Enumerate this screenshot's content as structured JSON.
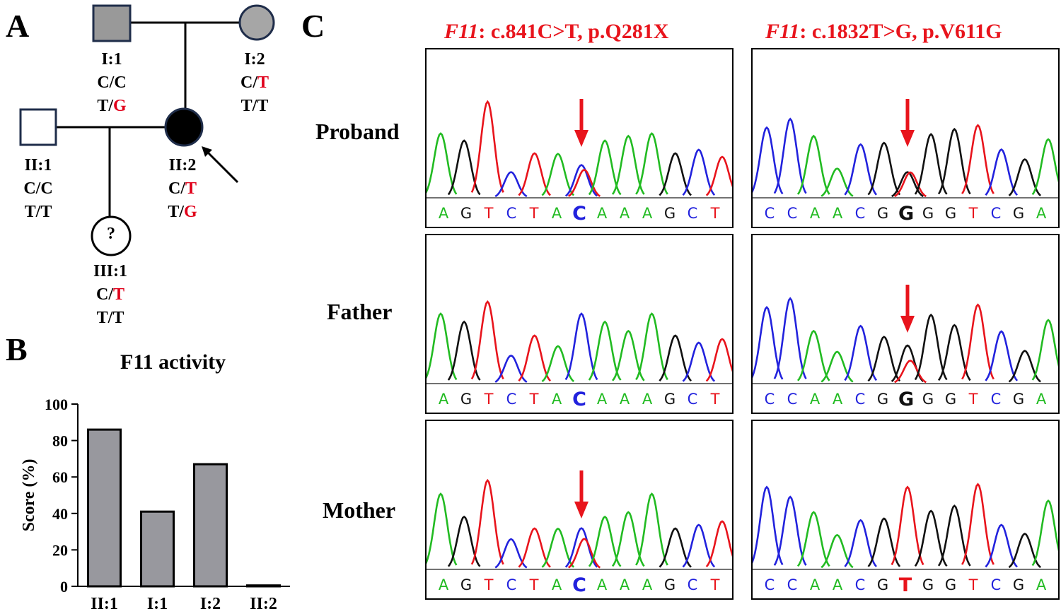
{
  "panels": {
    "a": "A",
    "b": "B",
    "c": "C"
  },
  "pedigree": {
    "members": [
      {
        "id": "I:1",
        "gt1": "C/",
        "gt1b": "C",
        "gt2": "T/",
        "gt2b": "G",
        "role": "father"
      },
      {
        "id": "I:2",
        "gt1": "C/",
        "gt1b": "T",
        "gt2": "T/",
        "gt2b": "T",
        "role": "mother"
      },
      {
        "id": "II:1",
        "gt1": "C/",
        "gt1b": "C",
        "gt2": "T/",
        "gt2b": "T",
        "role": "husband"
      },
      {
        "id": "II:2",
        "gt1": "C/",
        "gt1b": "T",
        "gt2": "T/",
        "gt2b": "G",
        "role": "proband"
      },
      {
        "id": "III:1",
        "gt1": "C/",
        "gt1b": "T",
        "gt2": "T/",
        "gt2b": "T",
        "role": "child"
      }
    ],
    "unknown_symbol": "?"
  },
  "sequencing": {
    "col1_gene": "F11",
    "col1_title": ": c.841C>T, p.Q281X",
    "col2_gene": "F11",
    "col2_title": ": c.1832T>G, p.V611G",
    "row_labels": [
      "Proband",
      "Father",
      "Mother"
    ],
    "bases_col1": [
      "A",
      "G",
      "T",
      "C",
      "T",
      "A",
      "C",
      "A",
      "A",
      "A",
      "G",
      "C",
      "T"
    ],
    "bases_col2_proband": [
      "C",
      "C",
      "A",
      "A",
      "C",
      "G",
      "G",
      "G",
      "G",
      "T",
      "C",
      "G",
      "A"
    ],
    "bases_col2_father": [
      "C",
      "C",
      "A",
      "A",
      "C",
      "G",
      "G",
      "G",
      "G",
      "T",
      "C",
      "G",
      "A"
    ],
    "bases_col2_mother": [
      "C",
      "C",
      "A",
      "A",
      "C",
      "G",
      "T",
      "G",
      "G",
      "T",
      "C",
      "G",
      "A"
    ],
    "highlight_index": 6,
    "colors": {
      "A": "#22bb22",
      "C": "#2222dd",
      "G": "#111111",
      "T": "#e8141c",
      "arrow": "#e8141c"
    }
  },
  "chart_data": {
    "type": "bar",
    "title": "F11 activity",
    "ylabel": "Score (%)",
    "xlabel": "",
    "categories": [
      "II:1",
      "I:1",
      "I:2",
      "II:2"
    ],
    "values": [
      86,
      41,
      67,
      0.5
    ],
    "ylim": [
      0,
      100
    ],
    "yticks": [
      0,
      20,
      40,
      60,
      80,
      100
    ],
    "bar_color": "#98989e"
  }
}
